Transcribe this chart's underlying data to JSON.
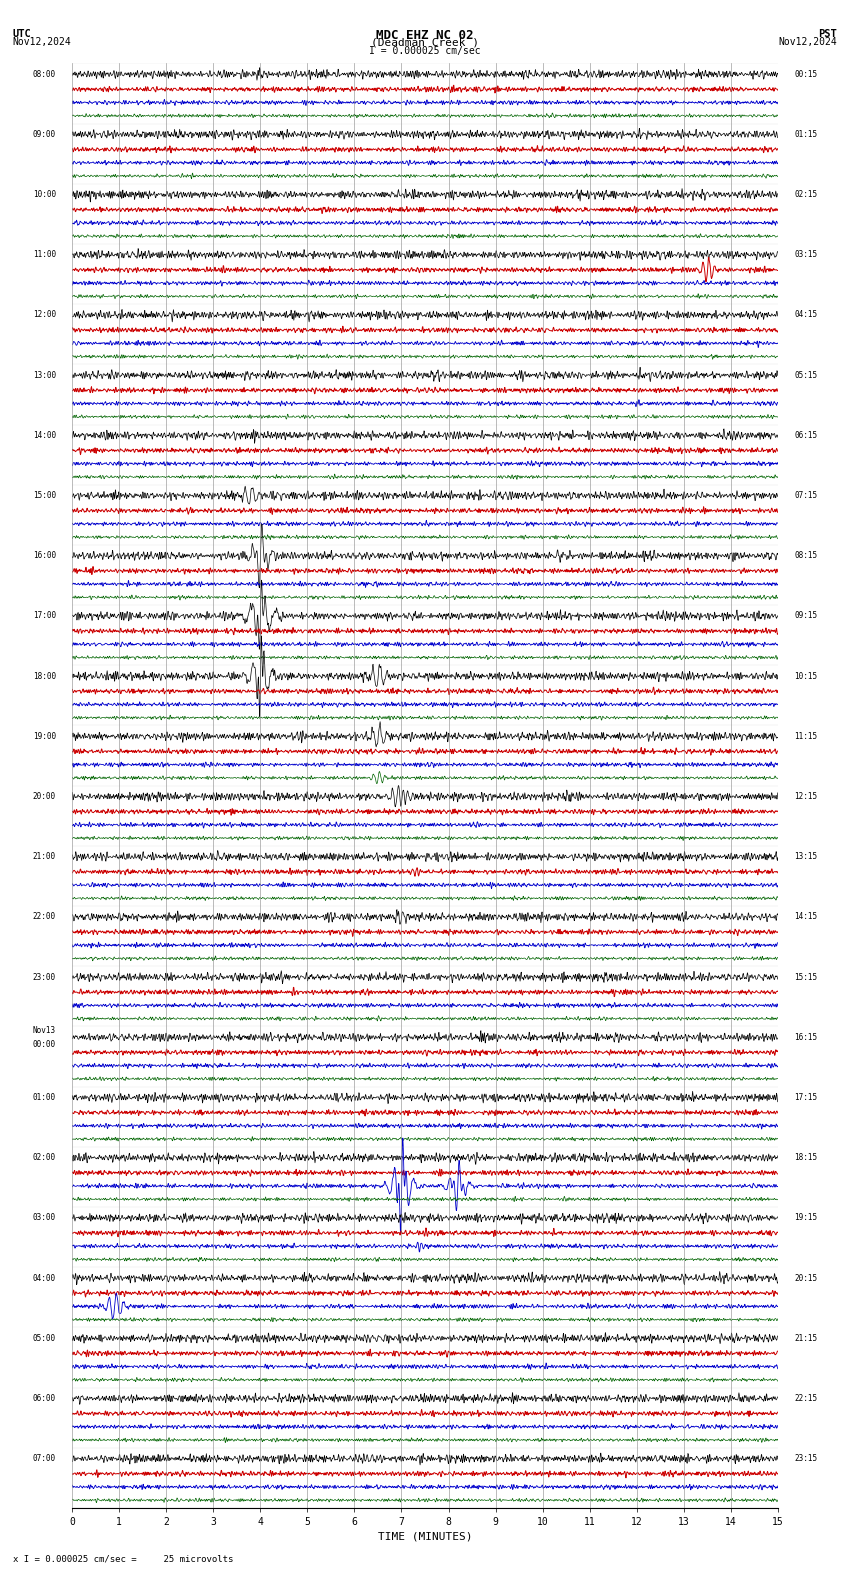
{
  "title_line1": "MDC EHZ NC 02",
  "title_line2": "(Deadman Creek )",
  "scale_text": "I = 0.000025 cm/sec",
  "utc_label": "UTC",
  "utc_date": "Nov12,2024",
  "pst_label": "PST",
  "pst_date": "Nov12,2024",
  "bottom_label": "TIME (MINUTES)",
  "bottom_scale": "x I = 0.000025 cm/sec =     25 microvolts",
  "bg_color": "#ffffff",
  "trace_colors": [
    "#000000",
    "#cc0000",
    "#0000cc",
    "#006400"
  ],
  "n_rows": 24,
  "left_labels": [
    "08:00",
    "09:00",
    "10:00",
    "11:00",
    "12:00",
    "13:00",
    "14:00",
    "15:00",
    "16:00",
    "17:00",
    "18:00",
    "19:00",
    "20:00",
    "21:00",
    "22:00",
    "23:00",
    "Nov13\n00:00",
    "01:00",
    "02:00",
    "03:00",
    "04:00",
    "05:00",
    "06:00",
    "07:00"
  ],
  "right_labels": [
    "00:15",
    "01:15",
    "02:15",
    "03:15",
    "04:15",
    "05:15",
    "06:15",
    "07:15",
    "08:15",
    "09:15",
    "10:15",
    "11:15",
    "12:15",
    "13:15",
    "14:15",
    "15:15",
    "16:15",
    "17:15",
    "18:15",
    "19:15",
    "20:15",
    "21:15",
    "22:15",
    "23:15"
  ],
  "figsize": [
    8.5,
    15.84
  ],
  "dpi": 100,
  "grid_color": "#888888",
  "font_family": "monospace",
  "noise_amp_black": 0.03,
  "noise_amp_red": 0.018,
  "noise_amp_blue": 0.015,
  "noise_amp_green": 0.012,
  "lw_black": 0.5,
  "lw_red": 0.7,
  "lw_blue": 0.6,
  "lw_green": 0.5
}
